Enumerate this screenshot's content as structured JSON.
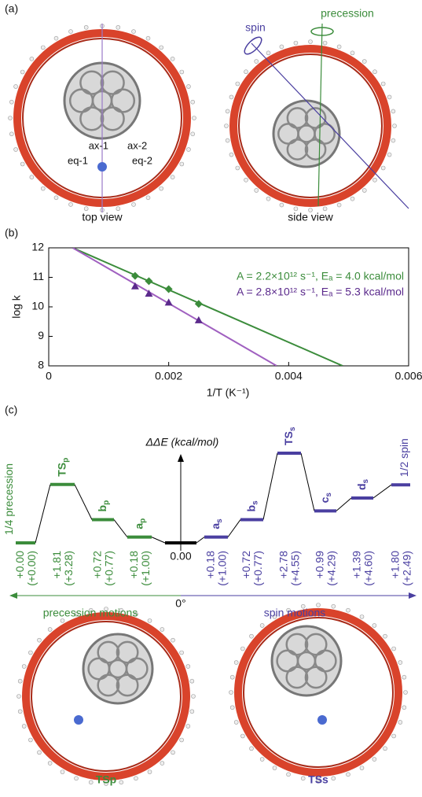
{
  "panel_a": {
    "label": "(a)",
    "top_caption": "top view",
    "side_caption": "side view",
    "atom_labels": [
      "ax-1",
      "eq-1",
      "ax-2",
      "eq-2"
    ],
    "spin": "spin",
    "precession": "precession"
  },
  "chart_data": {
    "type": "scatter",
    "label": "(b)",
    "x_label": "1/T (K⁻¹)",
    "y_label": "log k",
    "xlim": [
      0,
      0.006
    ],
    "ylim": [
      8,
      12
    ],
    "xticks": [
      0,
      0.002,
      0.004,
      0.006
    ],
    "yticks": [
      8,
      9,
      10,
      11,
      12
    ],
    "legend": "upper right",
    "series": [
      {
        "name": "A = 2.2×10¹² s⁻¹, Eₐ = 4.0 kcal/mol",
        "color": "#3b8c3b",
        "marker": "diamond",
        "x": [
          0.00144,
          0.00167,
          0.002,
          0.0025
        ],
        "values": [
          11.05,
          10.87,
          10.6,
          10.1
        ],
        "fit": {
          "x": [
            0.0004,
            0.0049
          ],
          "values": [
            12,
            8
          ]
        }
      },
      {
        "name": "A = 2.8×10¹² s⁻¹, Eₐ = 5.3 kcal/mol",
        "color": "#5b2a8c",
        "marker": "triangle",
        "x": [
          0.00144,
          0.00167,
          0.002,
          0.0025
        ],
        "values": [
          10.7,
          10.45,
          10.15,
          9.55
        ],
        "fit": {
          "x": [
            0.0004,
            0.0038
          ],
          "values": [
            12,
            8
          ]
        },
        "fit_color": "#a060c0"
      }
    ]
  },
  "energy_diagram": {
    "label": "(c)",
    "axis_label": "ΔΔE (kcal/mol)",
    "origin_label": "0°",
    "left_caption": "precession motions",
    "right_caption": "spin motions",
    "levels": [
      {
        "name": "1/4 precession",
        "side": "precession",
        "value": 0,
        "value_label": "+0.00",
        "paren": "(+0.00)"
      },
      {
        "name": "TS",
        "sub": "p",
        "side": "precession",
        "value": 1.81,
        "value_label": "+1.81",
        "paren": "(+3.28)"
      },
      {
        "name": "b",
        "sub": "p",
        "side": "precession",
        "value": 0.72,
        "value_label": "+0.72",
        "paren": "(+0.77)"
      },
      {
        "name": "a",
        "sub": "p",
        "side": "precession",
        "value": 0.18,
        "value_label": "+0.18",
        "paren": "(+1.00)"
      },
      {
        "side": "origin",
        "value": 0,
        "value_label": "0.00"
      },
      {
        "name": "a",
        "sub": "s",
        "side": "spin",
        "value": 0.18,
        "value_label": "+0.18",
        "paren": "(+1.00)"
      },
      {
        "name": "b",
        "sub": "s",
        "side": "spin",
        "value": 0.72,
        "value_label": "+0.72",
        "paren": "(+0.77)"
      },
      {
        "name": "TS",
        "sub": "s",
        "side": "spin",
        "value": 2.78,
        "value_label": "+2.78",
        "paren": "(+4.55)"
      },
      {
        "name": "c",
        "sub": "s",
        "side": "spin",
        "value": 0.99,
        "value_label": "+0.99",
        "paren": "(+4.29)"
      },
      {
        "name": "d",
        "sub": "s",
        "side": "spin",
        "value": 1.39,
        "value_label": "+1.39",
        "paren": "(+4.60)"
      },
      {
        "name": "1/2 spin",
        "side": "spin",
        "value": 1.8,
        "value_label": "+1.80",
        "paren": "(+2.49)"
      }
    ]
  },
  "structures": {
    "left_caption": "TSp",
    "right_caption": "TSs"
  }
}
